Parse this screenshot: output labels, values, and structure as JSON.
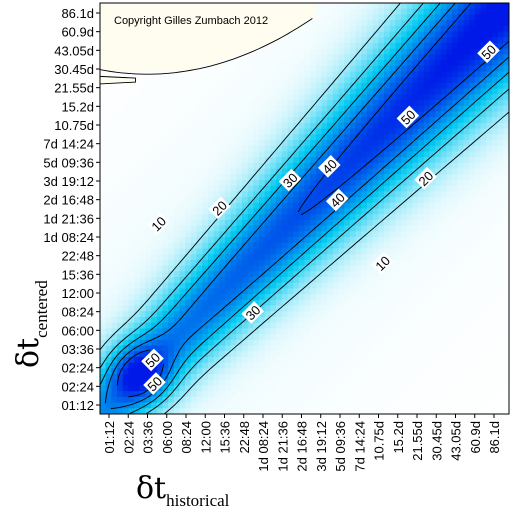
{
  "chart_data": {
    "type": "heatmap",
    "copyright": "Copyright Gilles Zumbach 2012",
    "xlabel": {
      "symbol": "δt",
      "subscript": "historical"
    },
    "ylabel": {
      "symbol": "δt",
      "subscript": "centered"
    },
    "x_ticks": [
      "01:12",
      "02:24",
      "03:36",
      "06:00",
      "08:24",
      "12:00",
      "15:36",
      "22:48",
      "1d 08:24",
      "1d 21:36",
      "2d 16:48",
      "3d 19:12",
      "5d 09:36",
      "7d 14:24",
      "10.75d",
      "15.2d",
      "21.55d",
      "30.45d",
      "43.05d",
      "60.9d",
      "86.1d"
    ],
    "y_ticks": [
      "01:12",
      "02:24",
      "02:24",
      "03:36",
      "06:00",
      "08:24",
      "12:00",
      "15:36",
      "22:48",
      "1d 08:24",
      "1d 21:36",
      "2d 16:48",
      "3d 19:12",
      "5d 09:36",
      "7d 14:24",
      "10.75d",
      "15.2d",
      "21.55d",
      "30.45d",
      "43.05d",
      "60.9d",
      "86.1d"
    ],
    "contour_levels": [
      "10",
      "20",
      "30",
      "40",
      "50"
    ],
    "contour_labels": [
      {
        "text": "10",
        "i": 2.6,
        "j": 9.2
      },
      {
        "text": "20",
        "i": 5.7,
        "j": 10.0
      },
      {
        "text": "30",
        "i": 9.3,
        "j": 11.4
      },
      {
        "text": "40",
        "i": 11.3,
        "j": 12.1
      },
      {
        "text": "50",
        "i": 15.3,
        "j": 14.6
      },
      {
        "text": "50",
        "i": 19.4,
        "j": 17.9
      },
      {
        "text": "40",
        "i": 11.7,
        "j": 10.4
      },
      {
        "text": "30",
        "i": 7.4,
        "j": 4.7
      },
      {
        "text": "20",
        "i": 16.2,
        "j": 11.5
      },
      {
        "text": "10",
        "i": 14.0,
        "j": 7.2
      },
      {
        "text": "50",
        "i": 2.3,
        "j": 2.3
      },
      {
        "text": "50",
        "i": 2.4,
        "j": 1.1
      }
    ],
    "colors": {
      "low": "#ffffff",
      "mid": "#00c8f0",
      "high": "#0018e8",
      "plateau": "#fffcf0"
    }
  }
}
